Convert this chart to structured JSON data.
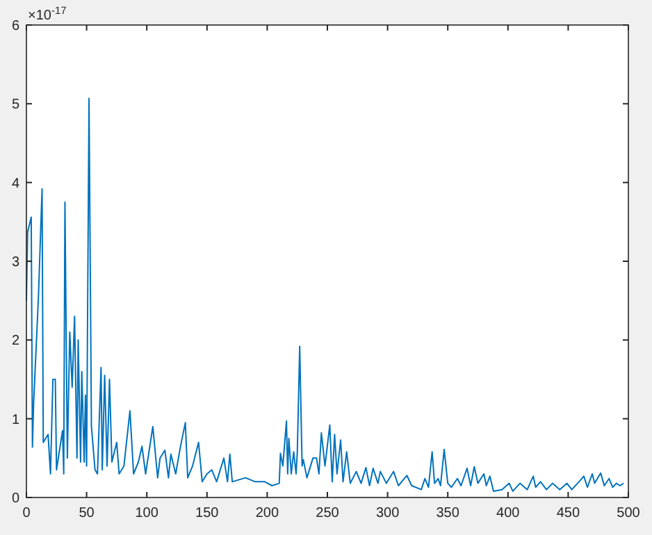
{
  "chart_data": {
    "type": "line",
    "x": [
      0,
      1,
      4,
      5,
      6,
      10,
      13,
      14,
      18,
      20,
      22,
      24,
      25,
      30,
      31,
      32,
      34,
      36,
      38,
      40,
      42,
      43,
      45,
      46,
      48,
      49,
      50,
      52,
      54,
      57,
      59,
      62,
      63,
      65,
      67,
      69,
      71,
      75,
      77,
      81,
      86,
      89,
      93,
      96,
      99,
      105,
      109,
      111,
      115,
      118,
      120,
      124,
      128,
      132,
      134,
      138,
      143,
      146,
      150,
      154,
      158,
      164,
      167,
      169,
      171,
      182,
      190,
      198,
      204,
      210,
      211,
      213,
      216,
      217,
      218,
      220,
      222,
      224,
      225,
      227,
      229,
      230,
      233,
      238,
      241,
      243,
      245,
      248,
      252,
      254,
      256,
      258,
      261,
      263,
      266,
      269,
      274,
      278,
      282,
      285,
      288,
      292,
      294,
      299,
      305,
      309,
      316,
      320,
      328,
      331,
      334,
      337,
      339,
      342,
      344,
      347,
      350,
      353,
      358,
      361,
      366,
      369,
      372,
      375,
      380,
      382,
      385,
      388,
      395,
      401,
      404,
      410,
      416,
      421,
      423,
      427,
      432,
      437,
      443,
      449,
      453,
      459,
      463,
      466,
      470,
      472,
      477,
      480,
      484,
      487,
      490,
      493,
      496
    ],
    "series": [
      {
        "color": "#0072bd",
        "values": [
          2.5,
          3.37,
          3.56,
          0.64,
          1.2,
          2.55,
          3.92,
          0.7,
          0.8,
          0.3,
          1.5,
          1.5,
          0.35,
          0.85,
          0.3,
          3.75,
          0.5,
          2.1,
          1.4,
          2.3,
          0.5,
          2.0,
          0.45,
          1.6,
          0.45,
          1.3,
          0.4,
          5.07,
          0.9,
          0.35,
          0.3,
          1.65,
          0.35,
          1.55,
          0.4,
          1.5,
          0.45,
          0.7,
          0.3,
          0.4,
          1.1,
          0.3,
          0.45,
          0.65,
          0.3,
          0.9,
          0.25,
          0.5,
          0.6,
          0.25,
          0.55,
          0.3,
          0.65,
          0.95,
          0.25,
          0.4,
          0.7,
          0.2,
          0.3,
          0.35,
          0.2,
          0.5,
          0.2,
          0.55,
          0.2,
          0.25,
          0.2,
          0.2,
          0.15,
          0.18,
          0.56,
          0.4,
          0.97,
          0.3,
          0.75,
          0.3,
          0.58,
          0.3,
          0.57,
          1.92,
          0.4,
          0.48,
          0.25,
          0.5,
          0.5,
          0.3,
          0.82,
          0.4,
          0.92,
          0.2,
          0.8,
          0.3,
          0.73,
          0.2,
          0.58,
          0.18,
          0.33,
          0.18,
          0.38,
          0.15,
          0.37,
          0.18,
          0.33,
          0.18,
          0.33,
          0.15,
          0.28,
          0.15,
          0.1,
          0.24,
          0.13,
          0.58,
          0.18,
          0.24,
          0.15,
          0.61,
          0.18,
          0.13,
          0.24,
          0.15,
          0.37,
          0.15,
          0.39,
          0.18,
          0.3,
          0.15,
          0.27,
          0.08,
          0.1,
          0.18,
          0.08,
          0.18,
          0.1,
          0.27,
          0.13,
          0.2,
          0.1,
          0.18,
          0.1,
          0.18,
          0.1,
          0.2,
          0.27,
          0.13,
          0.3,
          0.18,
          0.31,
          0.15,
          0.24,
          0.13,
          0.18,
          0.15,
          0.18
        ]
      }
    ],
    "xlim": [
      0,
      500
    ],
    "xticks": [
      0,
      50,
      100,
      150,
      200,
      250,
      300,
      350,
      400,
      450,
      500
    ],
    "ylim": [
      0,
      6
    ],
    "yticks": [
      0,
      1,
      2,
      3,
      4,
      5,
      6
    ],
    "annotations": [
      "×10$^{-17}$"
    ]
  }
}
